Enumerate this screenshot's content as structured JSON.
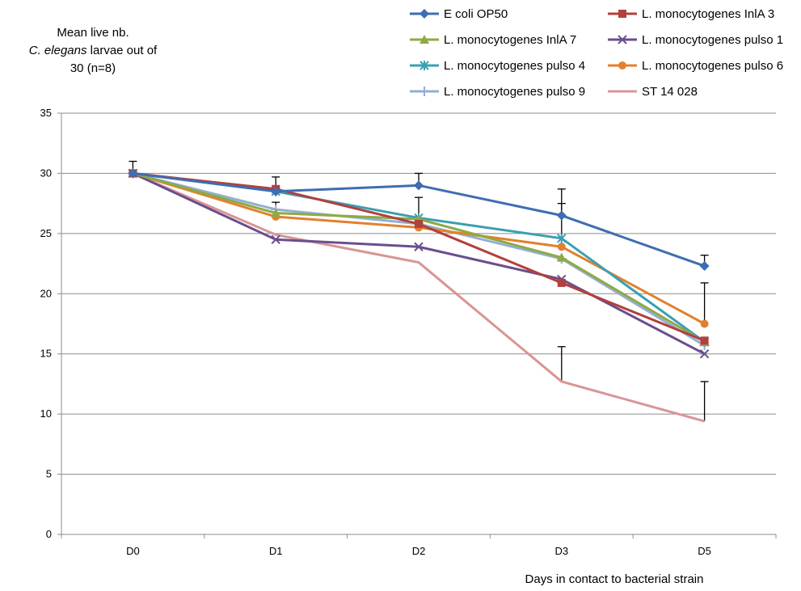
{
  "chart_data": {
    "type": "line",
    "title": "",
    "ylabel_lines": [
      "Mean live nb.",
      "C. elegans",
      "larvae out of",
      "30  (n=8)"
    ],
    "xlabel": "Days in contact to bacterial strain",
    "categories": [
      "D0",
      "D1",
      "D2",
      "D3",
      "D5"
    ],
    "ylim": [
      0,
      35
    ],
    "yticks": [
      0,
      5,
      10,
      15,
      20,
      25,
      30,
      35
    ],
    "grid": true,
    "legend_position": "top",
    "series": [
      {
        "name": "E coli OP50",
        "color": "#3e6db2",
        "marker": "diamond",
        "values": [
          30.0,
          28.5,
          29.0,
          26.5,
          22.3
        ],
        "error": [
          1.0,
          1.2,
          1.0,
          2.2,
          0.9
        ]
      },
      {
        "name": "L. monocytogenes InlA 3",
        "color": "#b2403c",
        "marker": "square",
        "values": [
          30.0,
          28.7,
          25.8,
          20.9,
          16.1
        ],
        "error": [
          null,
          null,
          null,
          null,
          null
        ]
      },
      {
        "name": "L. monocytogenes InlA 7",
        "color": "#8eaa44",
        "marker": "triangle",
        "values": [
          30.0,
          26.7,
          26.2,
          23.0,
          16.0
        ],
        "error": [
          null,
          null,
          null,
          null,
          null
        ]
      },
      {
        "name": "L. monocytogenes pulso 1",
        "color": "#6a4e8e",
        "marker": "x",
        "values": [
          30.0,
          24.5,
          23.9,
          21.2,
          15.0
        ],
        "error": [
          null,
          null,
          null,
          null,
          null
        ]
      },
      {
        "name": "L. monocytogenes pulso 4",
        "color": "#3b9fb2",
        "marker": "star",
        "values": [
          30.0,
          28.5,
          26.3,
          24.6,
          16.0
        ],
        "error": [
          null,
          null,
          null,
          null,
          null
        ]
      },
      {
        "name": "L. monocytogenes pulso 6",
        "color": "#e1812f",
        "marker": "circle",
        "values": [
          30.0,
          26.4,
          25.5,
          23.9,
          17.5
        ],
        "error": [
          null,
          1.2,
          2.5,
          3.6,
          3.4
        ]
      },
      {
        "name": "L. monocytogenes pulso 9",
        "color": "#94aed4",
        "marker": "plus",
        "values": [
          30.0,
          27.0,
          25.8,
          22.9,
          15.7
        ],
        "error": [
          null,
          null,
          null,
          null,
          null
        ]
      },
      {
        "name": "ST 14 028",
        "color": "#d99594",
        "marker": "none",
        "values": [
          30.0,
          24.9,
          22.6,
          12.7,
          9.4
        ],
        "error": [
          null,
          null,
          null,
          2.9,
          3.3
        ]
      }
    ]
  }
}
